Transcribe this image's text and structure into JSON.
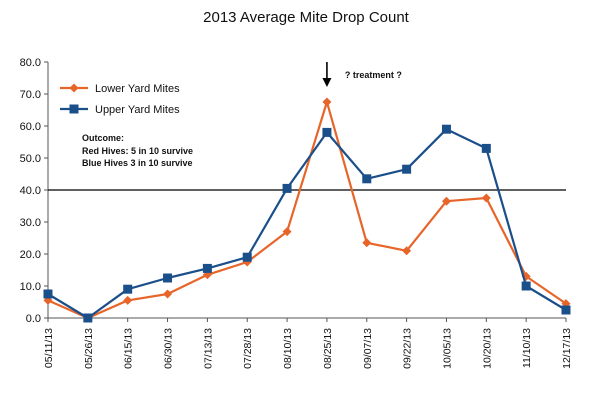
{
  "chart_data": {
    "type": "line",
    "title": "2013 Average Mite Drop Count",
    "xlabel": "",
    "ylabel": "",
    "ylim": [
      0,
      80
    ],
    "yticks": [
      "0.0",
      "10.0",
      "20.0",
      "30.0",
      "40.0",
      "50.0",
      "60.0",
      "70.0",
      "80.0"
    ],
    "grid": false,
    "legend": "top-left",
    "categories": [
      "05/11/13",
      "05/26/13",
      "06/15/13",
      "06/30/13",
      "07/13/13",
      "07/28/13",
      "08/10/13",
      "08/25/13",
      "09/07/13",
      "09/22/13",
      "10/05/13",
      "10/20/13",
      "11/10/13",
      "12/17/13"
    ],
    "series": [
      {
        "name": "Lower Yard Mites",
        "color": "#e8652a",
        "marker": "diamond",
        "values": [
          5.5,
          0.0,
          5.5,
          7.5,
          13.5,
          17.5,
          27.0,
          67.5,
          23.5,
          21.0,
          36.5,
          37.5,
          13.0,
          4.5
        ]
      },
      {
        "name": "Upper Yard Mites",
        "color": "#1b4f8a",
        "marker": "square",
        "values": [
          7.5,
          0.0,
          9.0,
          12.5,
          15.5,
          19.0,
          40.5,
          58.0,
          43.5,
          46.5,
          59.0,
          53.0,
          10.0,
          2.5
        ]
      }
    ],
    "reference_line": {
      "y": 40,
      "color": "#000000"
    },
    "annotations": {
      "arrow_text": "? treatment ?",
      "arrow_category": "08/25/13",
      "outcome_title": "Outcome:",
      "outcome_lines": [
        "Red Hives: 5 in 10 survive",
        "Blue Hives 3 in 10 survive"
      ]
    }
  }
}
